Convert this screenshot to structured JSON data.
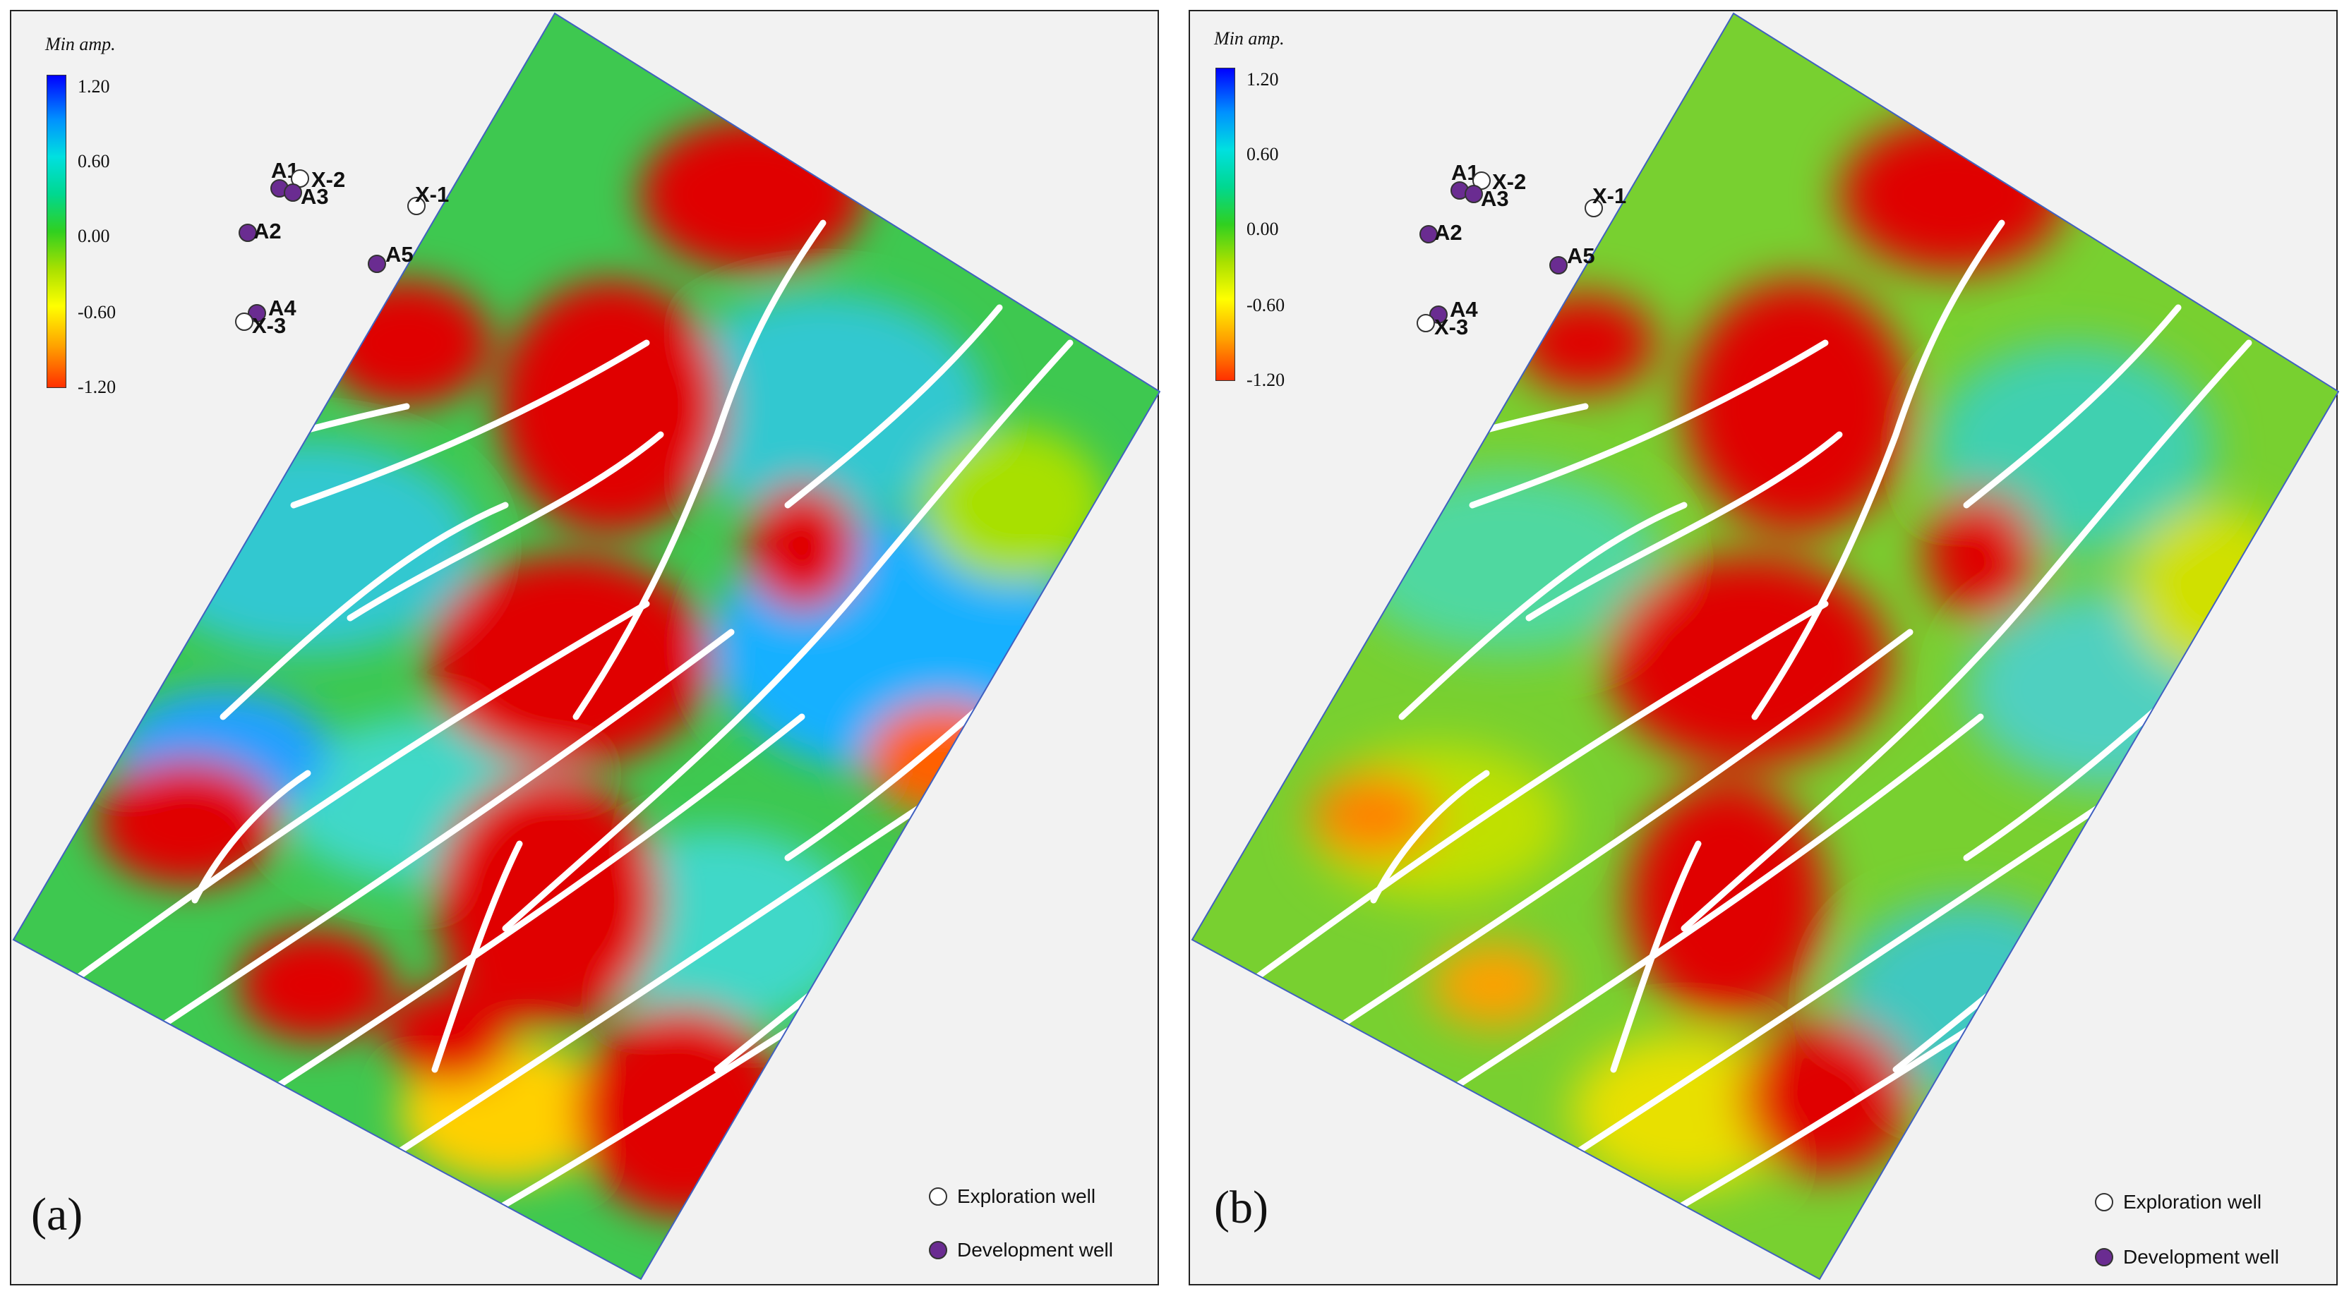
{
  "colorbar": {
    "title": "Min amp.",
    "ticks": [
      "1.20",
      "0.60",
      "0.00",
      "-0.60",
      "-1.20"
    ]
  },
  "legend": {
    "exploration": "Exploration well",
    "development": "Development well"
  },
  "colors": {
    "exploration_well": "#ffffff",
    "development_well": "#6a2c91",
    "high_negative": "#e00000",
    "neutral": "#50d040",
    "high_positive": "#1040ff"
  },
  "panels": [
    {
      "label": "(a)",
      "wells": [
        {
          "name": "A1",
          "type": "development"
        },
        {
          "name": "X-2",
          "type": "exploration"
        },
        {
          "name": "A3",
          "type": "development"
        },
        {
          "name": "X-1",
          "type": "exploration"
        },
        {
          "name": "A2",
          "type": "development"
        },
        {
          "name": "A5",
          "type": "development"
        },
        {
          "name": "A4",
          "type": "development"
        },
        {
          "name": "X-3",
          "type": "exploration"
        }
      ]
    },
    {
      "label": "(b)",
      "wells": [
        {
          "name": "A1",
          "type": "development"
        },
        {
          "name": "X-2",
          "type": "exploration"
        },
        {
          "name": "A3",
          "type": "development"
        },
        {
          "name": "X-1",
          "type": "exploration"
        },
        {
          "name": "A2",
          "type": "development"
        },
        {
          "name": "A5",
          "type": "development"
        },
        {
          "name": "A4",
          "type": "development"
        },
        {
          "name": "X-3",
          "type": "exploration"
        }
      ]
    }
  ]
}
